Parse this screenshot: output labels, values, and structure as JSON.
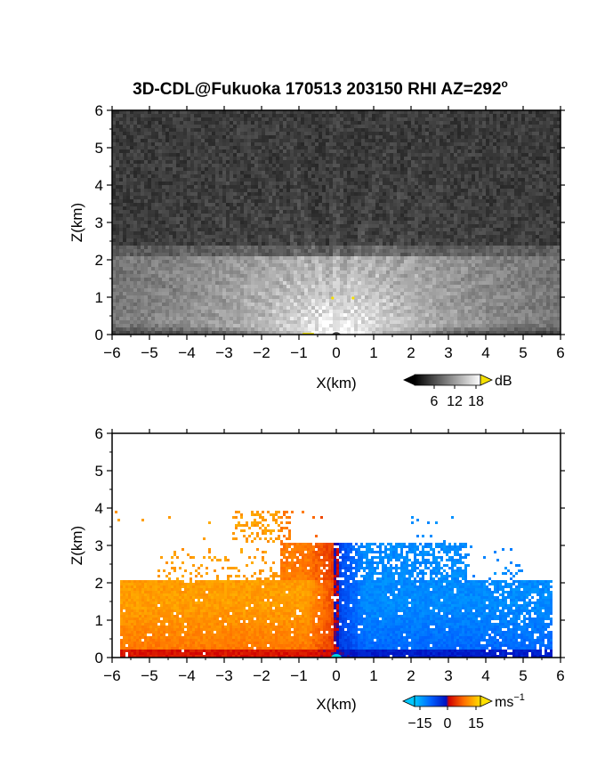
{
  "figure": {
    "title": "3D-CDL@Fukuoka 170513 203150 RHI AZ=292",
    "title_degree": "o"
  },
  "colors": {
    "gray_low": "#000000",
    "gray_high": "#ffffff",
    "gray_over": "#f5e000",
    "vel_under": "#00c8ff",
    "vel_neg": "#0030ff",
    "vel_zero": "#e00000",
    "vel_pos": "#ffd000"
  },
  "chart_data": [
    {
      "type": "heatmap",
      "name": "reflectivity",
      "title": "",
      "xlabel": "X(km)",
      "ylabel": "Z(km)",
      "xlim": [
        -6,
        6
      ],
      "ylim": [
        0,
        6
      ],
      "xticks": [
        "-6",
        "-5",
        "-4",
        "-3",
        "-2",
        "-1",
        "0",
        "1",
        "2",
        "3",
        "4",
        "5",
        "6"
      ],
      "yticks": [
        "0",
        "1",
        "2",
        "3",
        "4",
        "5",
        "6"
      ],
      "colorbar": {
        "unit": "dB",
        "ticks": [
          "6",
          "12",
          "18"
        ],
        "range": [
          0,
          20
        ]
      },
      "features": {
        "noise_level_db": 3,
        "boundary_layer_top_km": 2.1,
        "elevated_layer_km": [
          2.1,
          2.4
        ],
        "max_db_near_radar": 20
      }
    },
    {
      "type": "heatmap",
      "name": "doppler_velocity",
      "title": "",
      "xlabel": "X(km)",
      "ylabel": "Z(km)",
      "xlim": [
        -6,
        6
      ],
      "ylim": [
        0,
        6
      ],
      "xticks": [
        "-6",
        "-5",
        "-4",
        "-3",
        "-2",
        "-1",
        "0",
        "1",
        "2",
        "3",
        "4",
        "5",
        "6"
      ],
      "yticks": [
        "0",
        "1",
        "2",
        "3",
        "4",
        "5",
        "6"
      ],
      "colorbar": {
        "unit": "ms",
        "unit_exp": "−1",
        "ticks": [
          "−15",
          "0",
          "15"
        ],
        "range": [
          -20,
          20
        ]
      },
      "features": {
        "left_side_velocity_ms": 13,
        "right_side_velocity_ms": -13,
        "left_data_extent_km": -5.8,
        "right_data_extent_km": 5.8,
        "dense_data_top_km": 2.1,
        "plume_top_km": 3.9
      }
    }
  ]
}
